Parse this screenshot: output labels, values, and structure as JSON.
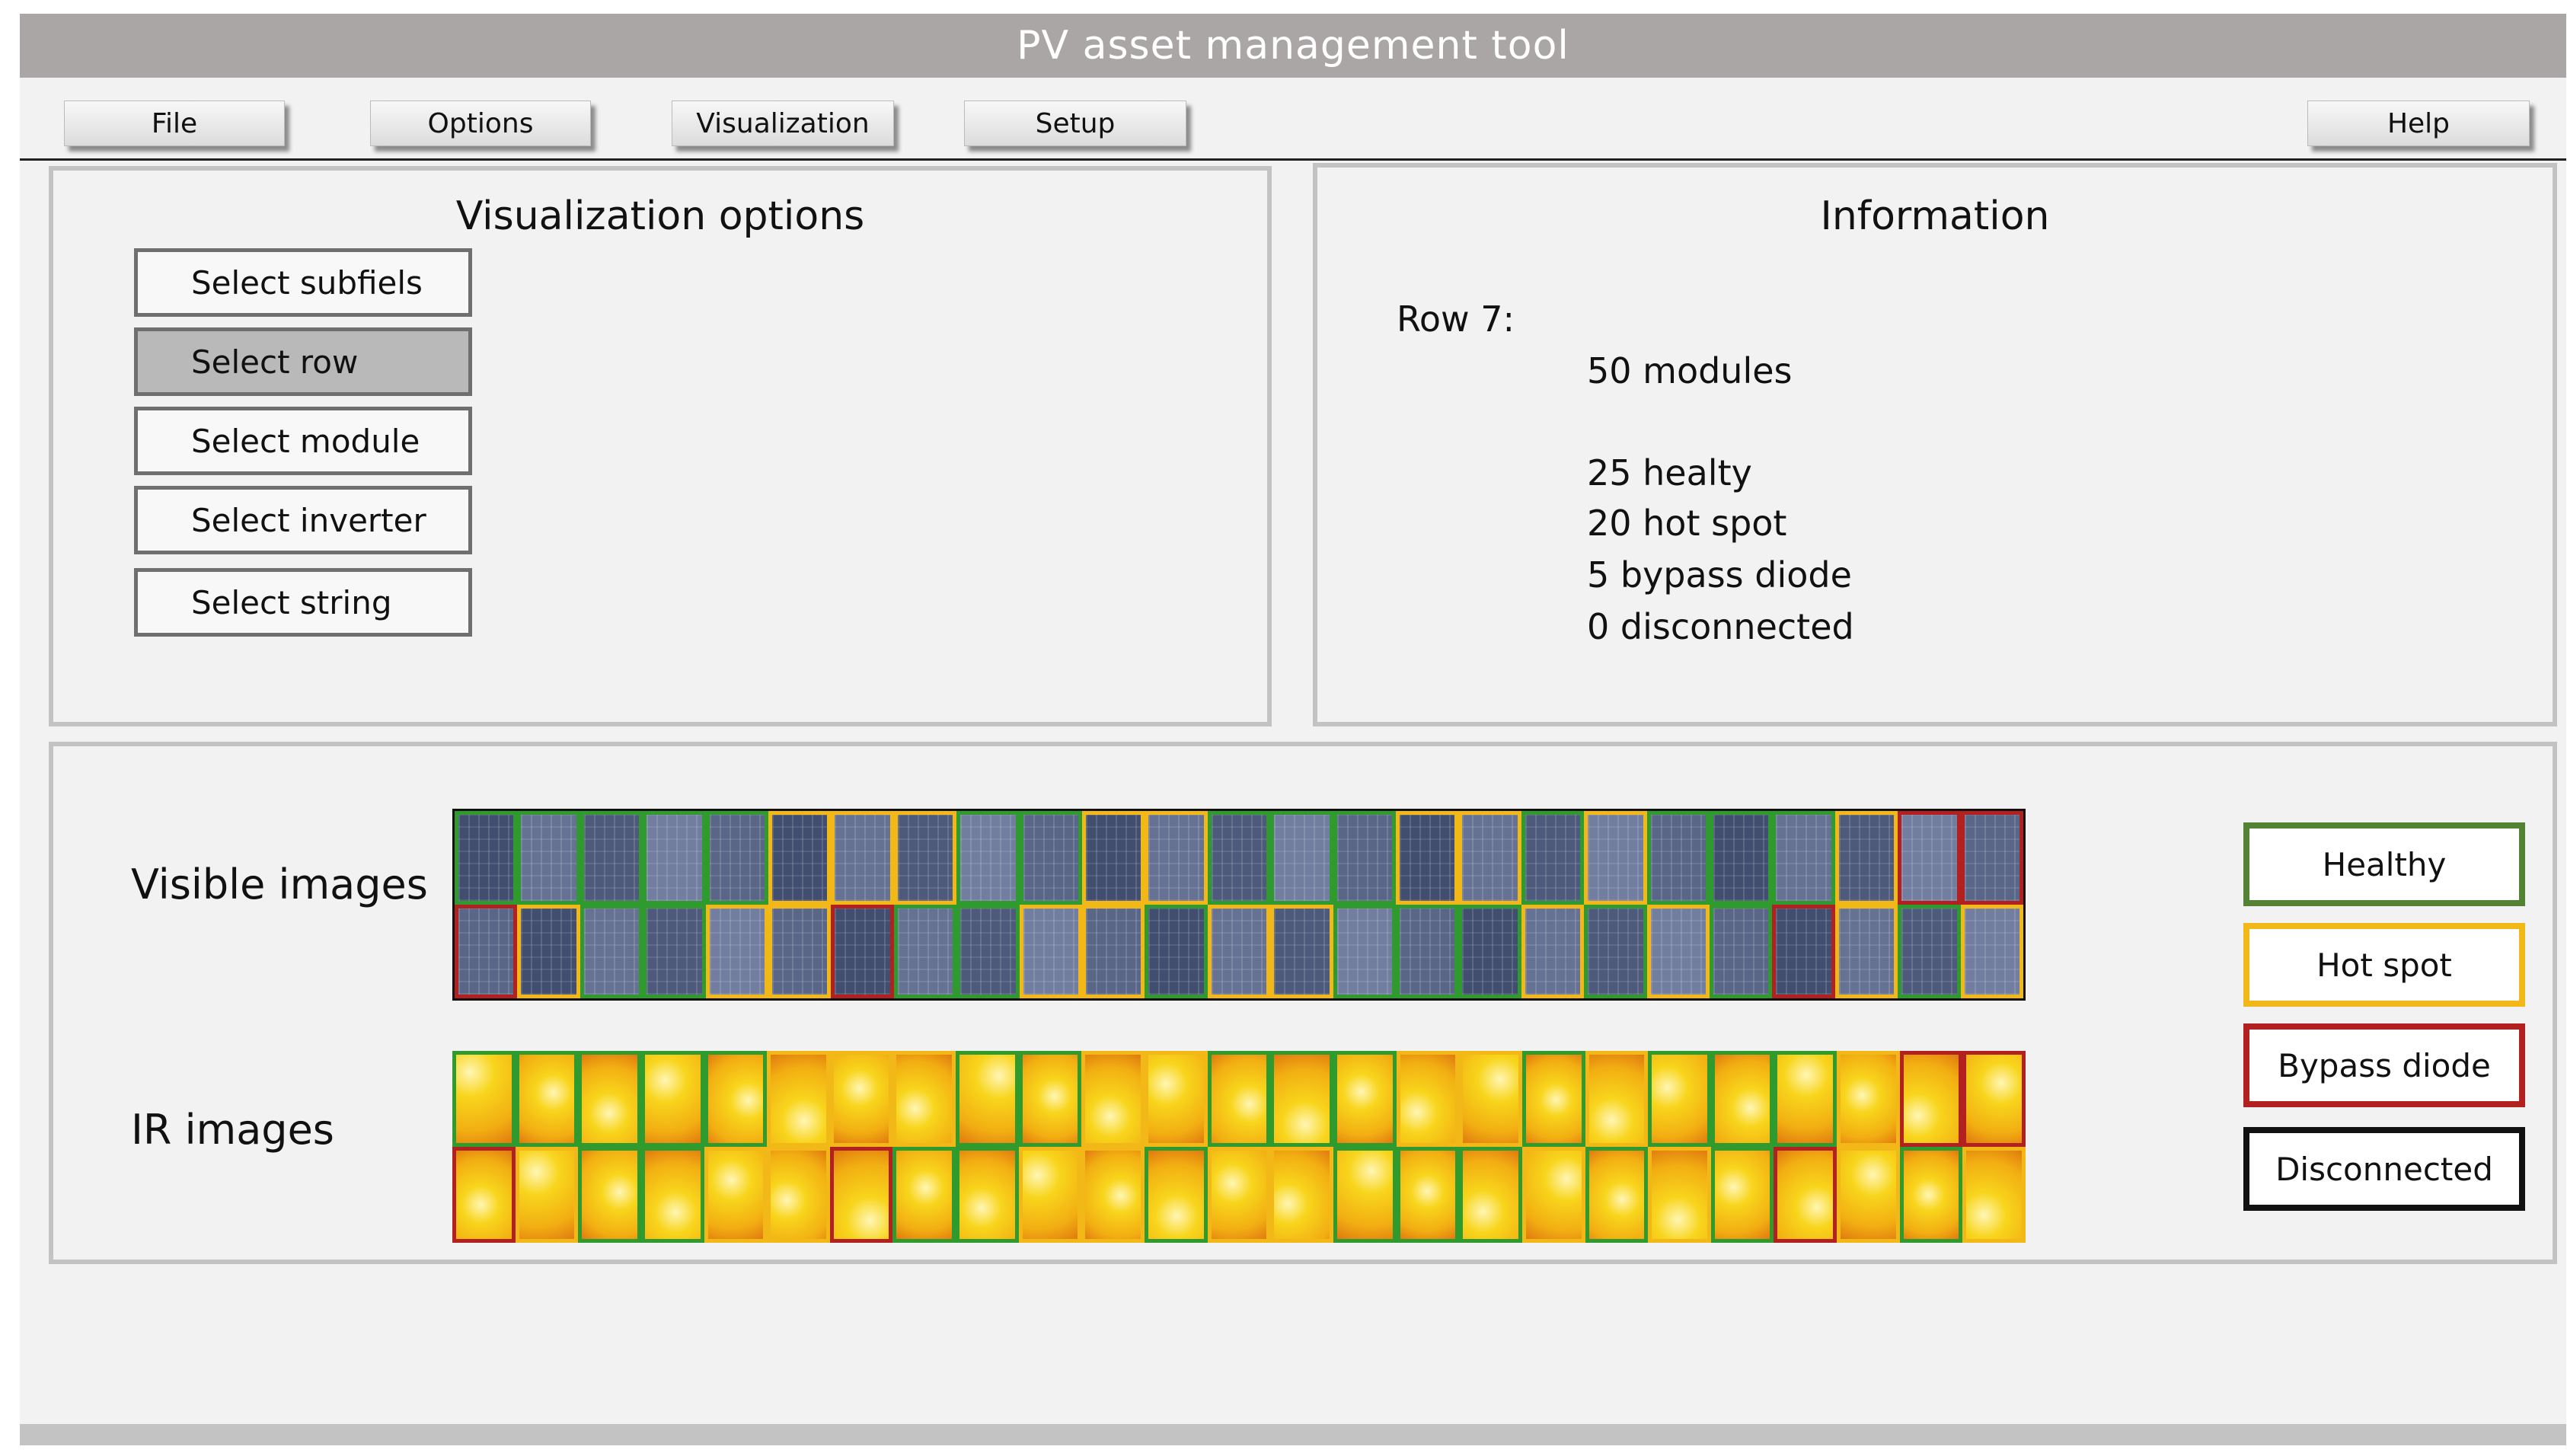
{
  "title": "PV asset management tool",
  "menu": {
    "file": "File",
    "options": "Options",
    "visualization": "Visualization",
    "setup": "Setup",
    "help": "Help"
  },
  "visualization_options": {
    "title": "Visualization options",
    "buttons": [
      "Select subfiels",
      "Select row",
      "Select module",
      "Select inverter",
      "Select string"
    ],
    "selected": "Select row"
  },
  "information": {
    "title": "Information",
    "row_label": "Row 7:",
    "modules": "50 modules",
    "healthy": "25 healty",
    "hot_spot": "20 hot spot",
    "bypass_diode": "5 bypass diode",
    "disconnected": "0 disconnected"
  },
  "images": {
    "visible_label": "Visible images",
    "ir_label": "IR images",
    "columns": 25,
    "module_status": [
      [
        "healthy",
        "healthy",
        "healthy",
        "healthy",
        "healthy",
        "hot",
        "hot",
        "hot",
        "healthy",
        "healthy",
        "hot",
        "hot",
        "healthy",
        "healthy",
        "healthy",
        "hot",
        "hot",
        "healthy",
        "hot",
        "healthy",
        "healthy",
        "healthy",
        "hot",
        "bypass",
        "bypass"
      ],
      [
        "bypass",
        "hot",
        "healthy",
        "healthy",
        "hot",
        "hot",
        "bypass",
        "healthy",
        "healthy",
        "hot",
        "hot",
        "healthy",
        "hot",
        "hot",
        "healthy",
        "healthy",
        "healthy",
        "hot",
        "healthy",
        "hot",
        "healthy",
        "bypass",
        "hot",
        "healthy",
        "hot"
      ]
    ]
  },
  "legend": {
    "healthy": "Healthy",
    "hot_spot": "Hot spot",
    "bypass_diode": "Bypass diode",
    "disconnected": "Disconnected"
  },
  "colors": {
    "healthy": "#2f9b2f",
    "hot_spot": "#f2b817",
    "bypass_diode": "#b32020",
    "disconnected": "#111111",
    "title_bar": "#aaa6a6"
  }
}
